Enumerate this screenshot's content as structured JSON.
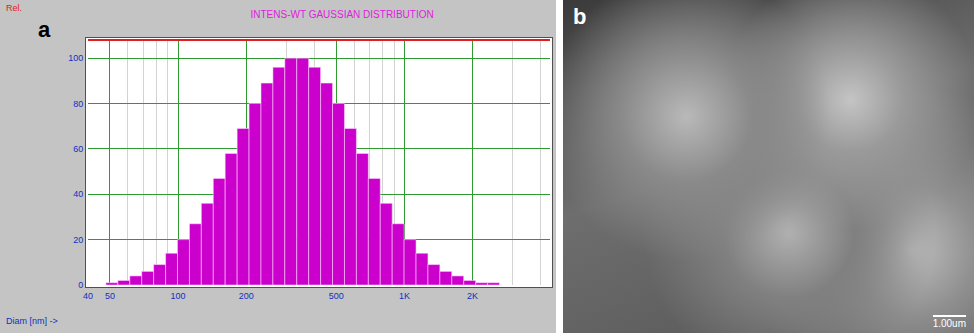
{
  "chart_data": {
    "type": "histogram",
    "title": "INTENS-WT GAUSSIAN DISTRIBUTION",
    "x_label": "Diam [nm] ->",
    "y_label": "Rel.",
    "bins": [
      48,
      54.2,
      61.2,
      69.1,
      78.0,
      88.1,
      99.4,
      112.3,
      126.7,
      143.1,
      161.5,
      182.4,
      205.9,
      232.5,
      262.5,
      296.3,
      334.6,
      377.7,
      426.5,
      481.5,
      543.6,
      613.8,
      693.0,
      782.3,
      883.3,
      997.2,
      1126,
      1271,
      1435,
      1620,
      1829,
      2065,
      2332,
      2632
    ],
    "values": [
      1,
      2,
      4,
      6,
      9,
      14,
      20,
      27,
      36,
      47,
      58,
      69,
      80,
      89,
      96,
      100,
      100,
      96,
      89,
      80,
      69,
      58,
      47,
      36,
      27,
      20,
      14,
      9,
      6,
      4,
      2,
      1,
      1
    ],
    "color": "#cc00cc",
    "log": "x",
    "grid": true,
    "xlim": [
      40,
      4400
    ],
    "xticks": [
      40,
      50,
      100,
      200,
      500,
      {
        "value": 1000,
        "label": "1K"
      },
      {
        "value": 2000,
        "label": "2K"
      }
    ],
    "ylim": [
      0,
      108
    ],
    "yticks": [
      0,
      20,
      40,
      60,
      80,
      100
    ]
  },
  "panel_labels": [
    "a",
    "b"
  ],
  "image_b": {
    "scale_bar": "1.00um"
  }
}
